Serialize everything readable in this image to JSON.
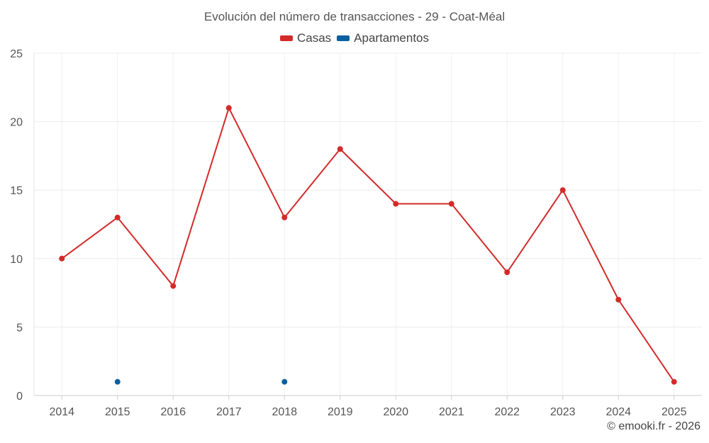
{
  "chart_data": {
    "type": "line",
    "title": "Evolución del número de transacciones - 29 - Coat-Méal",
    "xlabel": "",
    "ylabel": "",
    "categories": [
      "2014",
      "2015",
      "2016",
      "2017",
      "2018",
      "2019",
      "2020",
      "2021",
      "2022",
      "2023",
      "2024",
      "2025"
    ],
    "ylim": [
      0,
      25
    ],
    "yticks": [
      0,
      5,
      10,
      15,
      20,
      25
    ],
    "grid": true,
    "legend_position": "top-center",
    "series": [
      {
        "name": "Casas",
        "color": "#d42a2a",
        "values": [
          10,
          13,
          8,
          21,
          13,
          18,
          14,
          14,
          9,
          15,
          7,
          1
        ]
      },
      {
        "name": "Apartamentos",
        "color": "#0a5f9e",
        "values": [
          null,
          1,
          null,
          null,
          1,
          null,
          null,
          null,
          null,
          null,
          null,
          null
        ]
      }
    ]
  },
  "credit": "© emooki.fr - 2026"
}
